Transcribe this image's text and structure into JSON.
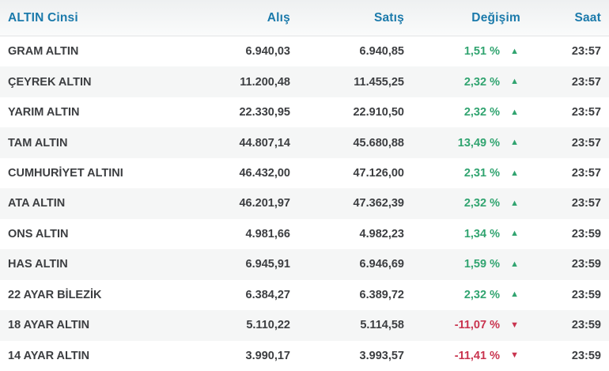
{
  "colors": {
    "header_blue": "#1b7aab",
    "up_green": "#31a470",
    "down_red": "#c9344f",
    "stripe_gray": "#f5f6f6",
    "text_dark": "#3c3e41"
  },
  "icons": {
    "arrow_up_icon": "▲",
    "arrow_down_icon": "▼"
  },
  "table": {
    "headers": {
      "name": "ALTIN Cinsi",
      "buy": "Alış",
      "sell": "Satış",
      "change": "Değişim",
      "time": "Saat"
    },
    "rows": [
      {
        "name": "GRAM ALTIN",
        "buy": "6.940,03",
        "sell": "6.940,85",
        "change": "1,51 %",
        "direction": "up",
        "time": "23:57"
      },
      {
        "name": "ÇEYREK ALTIN",
        "buy": "11.200,48",
        "sell": "11.455,25",
        "change": "2,32 %",
        "direction": "up",
        "time": "23:57"
      },
      {
        "name": "YARIM ALTIN",
        "buy": "22.330,95",
        "sell": "22.910,50",
        "change": "2,32 %",
        "direction": "up",
        "time": "23:57"
      },
      {
        "name": "TAM ALTIN",
        "buy": "44.807,14",
        "sell": "45.680,88",
        "change": "13,49 %",
        "direction": "up",
        "time": "23:57"
      },
      {
        "name": "CUMHURİYET ALTINI",
        "buy": "46.432,00",
        "sell": "47.126,00",
        "change": "2,31 %",
        "direction": "up",
        "time": "23:57"
      },
      {
        "name": "ATA ALTIN",
        "buy": "46.201,97",
        "sell": "47.362,39",
        "change": "2,32 %",
        "direction": "up",
        "time": "23:57"
      },
      {
        "name": "ONS ALTIN",
        "buy": "4.981,66",
        "sell": "4.982,23",
        "change": "1,34 %",
        "direction": "up",
        "time": "23:59"
      },
      {
        "name": "HAS ALTIN",
        "buy": "6.945,91",
        "sell": "6.946,69",
        "change": "1,59 %",
        "direction": "up",
        "time": "23:59"
      },
      {
        "name": "22 AYAR BİLEZİK",
        "buy": "6.384,27",
        "sell": "6.389,72",
        "change": "2,32 %",
        "direction": "up",
        "time": "23:59"
      },
      {
        "name": "18 AYAR ALTIN",
        "buy": "5.110,22",
        "sell": "5.114,58",
        "change": "-11,07 %",
        "direction": "down",
        "time": "23:59"
      },
      {
        "name": "14 AYAR ALTIN",
        "buy": "3.990,17",
        "sell": "3.993,57",
        "change": "-11,41 %",
        "direction": "down",
        "time": "23:59"
      }
    ]
  }
}
